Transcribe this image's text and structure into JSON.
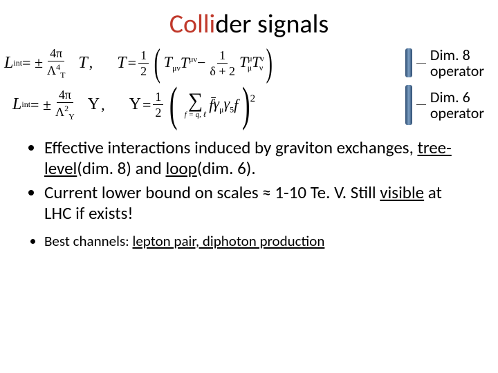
{
  "title": {
    "red": "Colli",
    "black": "der signals"
  },
  "eq1": {
    "lhs_L": "L",
    "lhs_sub": "int",
    "pm": " = ±",
    "frac_num": "4π",
    "frac_den_sym": "Λ",
    "frac_den_sup": "4",
    "frac_den_sub": "T",
    "op": "T",
    "comma": ",",
    "rhs_op": "T",
    "eq": " = ",
    "half_num": "1",
    "half_den": "2",
    "t1_base": "T",
    "t1_sub": "μν",
    "t2_base": "T",
    "t2_sup": "μν",
    "minus": " − ",
    "f2_num": "1",
    "f2_den": "δ + 2",
    "t3_base": "T",
    "t3_supsub_top": "μ",
    "t3_supsub_bot": "μ",
    "t4_base": "T",
    "t4_supsub_top": "ν",
    "t4_supsub_bot": "ν",
    "label": "Dim. 8\noperator",
    "label_l1": "Dim. 8",
    "label_l2": "operator",
    "brace_color": "#3b5f84"
  },
  "eq2": {
    "lhs_L": "L",
    "lhs_sub": "int",
    "pm": " = ±",
    "frac_num": "4π",
    "frac_den_sym": "Λ",
    "frac_den_sup": "2",
    "frac_den_sub": "Υ",
    "op": "Υ",
    "comma": ",",
    "rhs_op": "Υ",
    "eq": " = ",
    "half_num": "1",
    "half_den": "2",
    "sum_sub": "f = q, ℓ",
    "fbar": "f̄",
    "gamma_mu": "γ",
    "gamma_mu_sub": "μ",
    "gamma5": "γ",
    "gamma5_sub": "5",
    "f": "f",
    "outer_sup": "2",
    "label_l1": "Dim. 6",
    "label_l2": "operator",
    "brace_color": "#3b5f84"
  },
  "bullets": {
    "b1_a": "Effective interactions induced by graviton exchanges, ",
    "b1_tree": "tree-level",
    "b1_mid": "(dim. 8) and ",
    "b1_loop": "loop",
    "b1_end": "(dim. 6).",
    "b2_a": "Current lower bound on scales ≈ 1-10 Te. V.  Still ",
    "b2_vis": "visible",
    "b2_end": " at LHC if exists!"
  },
  "small": {
    "a": "Best channels: ",
    "b": "lepton pair, diphoton production"
  },
  "colors": {
    "title_red": "#c0392b",
    "text": "#000000",
    "bg": "#ffffff"
  },
  "fonts": {
    "title_size": 38,
    "body_size": 25,
    "small_size": 21,
    "label_size": 22,
    "eq_size": 22
  }
}
